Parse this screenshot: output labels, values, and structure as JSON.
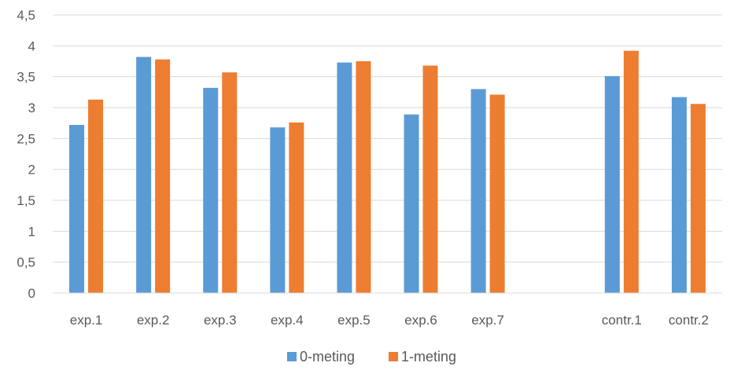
{
  "chart_data": {
    "type": "bar",
    "categories": [
      "exp.1",
      "exp.2",
      "exp.3",
      "exp.4",
      "exp.5",
      "exp.6",
      "exp.7",
      "",
      "contr.1",
      "contr.2"
    ],
    "series": [
      {
        "name": "0-meting",
        "color": "#5b9bd5",
        "values": [
          2.72,
          3.82,
          3.32,
          2.68,
          3.73,
          2.89,
          3.3,
          null,
          3.51,
          3.17
        ]
      },
      {
        "name": "1-meting",
        "color": "#ed7d31",
        "values": [
          3.13,
          3.78,
          3.57,
          2.76,
          3.75,
          3.68,
          3.21,
          null,
          3.92,
          3.06
        ]
      }
    ],
    "yticks": [
      "0",
      "0,5",
      "1",
      "1,5",
      "2",
      "2,5",
      "3",
      "3,5",
      "4",
      "4,5"
    ],
    "ylim": [
      0,
      4.5
    ],
    "grid": true,
    "legend_position": "bottom"
  }
}
